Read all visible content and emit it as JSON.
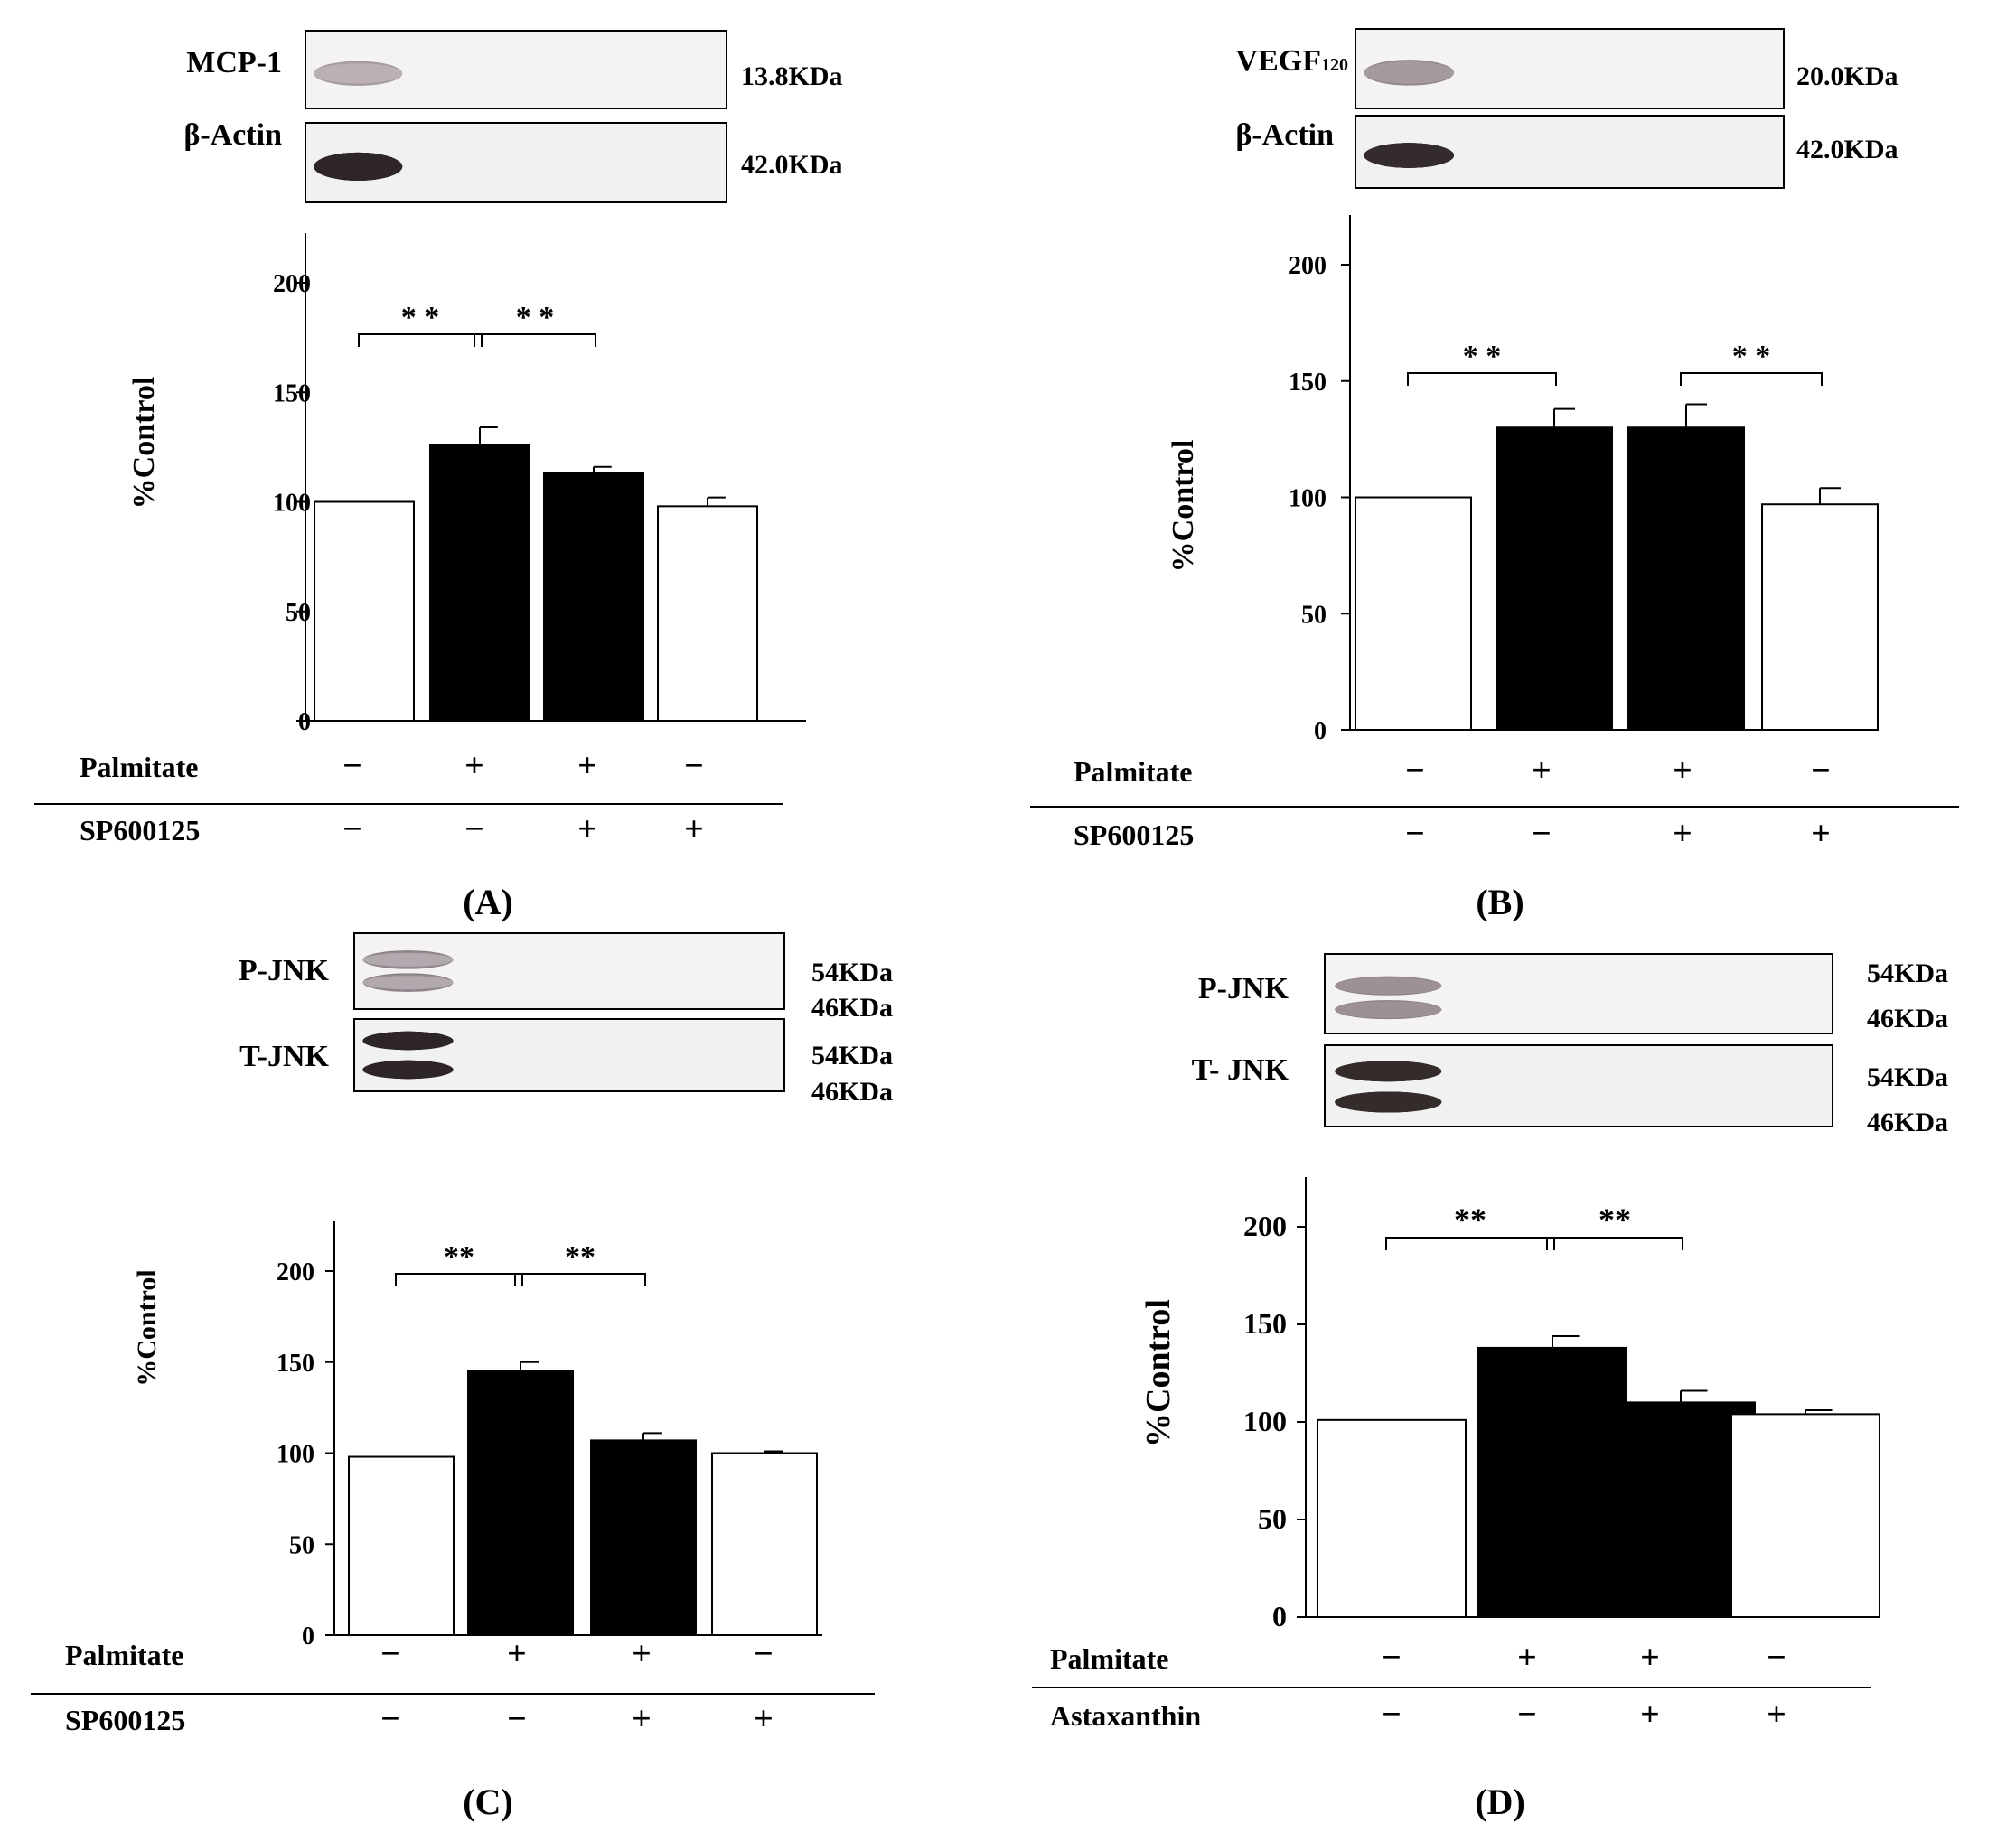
{
  "panels": [
    {
      "label": "(A)",
      "blots": [
        {
          "name": "MCP-1",
          "sub": "",
          "sizes": [
            "13.8KDa"
          ],
          "bands": [
            [
              0.45,
              0.7,
              0.45,
              0.28
            ]
          ],
          "dark": false
        },
        {
          "name": "β-Actin",
          "sub": "",
          "sizes": [
            "42.0KDa"
          ],
          "bands": [
            [
              0.95,
              0.95,
              0.95,
              0.95
            ]
          ],
          "dark": true
        }
      ],
      "conditions": [
        {
          "name": "Palmitate",
          "signs": [
            "−",
            "+",
            "+",
            "−"
          ]
        },
        {
          "name": "SP600125",
          "signs": [
            "−",
            "−",
            "+",
            "+"
          ]
        }
      ],
      "significance": [
        {
          "from": 0,
          "to": 1,
          "text": "* *"
        },
        {
          "from": 1,
          "to": 2,
          "text": "* *"
        }
      ]
    },
    {
      "label": "(B)",
      "blots": [
        {
          "name": "VEGF",
          "sub": "120",
          "sizes": [
            "20.0KDa"
          ],
          "bands": [
            [
              0.55,
              0.75,
              0.7,
              0.45
            ]
          ],
          "dark": false
        },
        {
          "name": "β-Actin",
          "sub": "",
          "sizes": [
            "42.0KDa"
          ],
          "bands": [
            [
              0.9,
              0.9,
              0.9,
              0.9
            ]
          ],
          "dark": true
        }
      ],
      "conditions": [
        {
          "name": "Palmitate",
          "signs": [
            "−",
            "+",
            "+",
            "−"
          ]
        },
        {
          "name": "SP600125",
          "signs": [
            "−",
            "−",
            "+",
            "+"
          ]
        }
      ],
      "significance": [
        {
          "from": 0,
          "to": 1,
          "text": "* *"
        },
        {
          "from": 2,
          "to": 3,
          "text": "* *"
        }
      ]
    },
    {
      "label": "(C)",
      "blots": [
        {
          "name": "P-JNK",
          "sub": "",
          "sizes": [
            "54KDa",
            "46KDa"
          ],
          "bands": [
            [
              0.55,
              0.85,
              0.6,
              0.2
            ]
          ],
          "dark": false
        },
        {
          "name": "T-JNK",
          "sub": "",
          "sizes": [
            "54KDa",
            "46KDa"
          ],
          "bands": [
            [
              0.95,
              0.95,
              0.95,
              0.95
            ]
          ],
          "dark": true
        }
      ],
      "conditions": [
        {
          "name": "Palmitate",
          "signs": [
            "−",
            "+",
            "+",
            "−"
          ]
        },
        {
          "name": "SP600125",
          "signs": [
            "−",
            "−",
            "+",
            "+"
          ]
        }
      ],
      "significance": [
        {
          "from": 0,
          "to": 1,
          "text": "**"
        },
        {
          "from": 1,
          "to": 2,
          "text": "**"
        }
      ]
    },
    {
      "label": "(D)",
      "blots": [
        {
          "name": "P-JNK",
          "sub": "",
          "sizes": [
            "54KDa",
            "46KDa"
          ],
          "bands": [
            [
              0.45,
              0.8,
              0.75,
              0.55
            ]
          ],
          "dark": false
        },
        {
          "name": "T- JNK",
          "sub": "",
          "sizes": [
            "54KDa",
            "46KDa"
          ],
          "bands": [
            [
              0.95,
              0.95,
              0.95,
              0.9
            ]
          ],
          "dark": true
        }
      ],
      "conditions": [
        {
          "name": "Palmitate",
          "signs": [
            "−",
            "+",
            "+",
            "−"
          ]
        },
        {
          "name": "Astaxanthin",
          "signs": [
            "−",
            "−",
            "+",
            "+"
          ]
        }
      ],
      "significance": [
        {
          "from": 0,
          "to": 1,
          "text": "**"
        },
        {
          "from": 1,
          "to": 2,
          "text": "**"
        }
      ]
    }
  ],
  "chart_data": [
    {
      "type": "bar",
      "ylabel": "%Control",
      "ylim": [
        0,
        200
      ],
      "yticks": [
        0,
        50,
        100,
        150,
        200
      ],
      "values": [
        100,
        126,
        113,
        98
      ],
      "errors": [
        0,
        8,
        3,
        4
      ],
      "bar_colors": [
        "#ffffff",
        "#000000",
        "#000000",
        "#ffffff"
      ]
    },
    {
      "type": "bar",
      "ylabel": "%Control",
      "ylim": [
        0,
        200
      ],
      "yticks": [
        0,
        50,
        100,
        150,
        200
      ],
      "values": [
        100,
        130,
        130,
        97
      ],
      "errors": [
        0,
        8,
        10,
        7
      ],
      "bar_colors": [
        "#ffffff",
        "#000000",
        "#000000",
        "#ffffff"
      ]
    },
    {
      "type": "bar",
      "ylabel": "%Control",
      "ylim": [
        0,
        200
      ],
      "yticks": [
        0,
        50,
        100,
        150,
        200
      ],
      "values": [
        98,
        145,
        107,
        100
      ],
      "errors": [
        0,
        5,
        4,
        1
      ],
      "bar_colors": [
        "#ffffff",
        "#000000",
        "#000000",
        "#ffffff"
      ]
    },
    {
      "type": "bar",
      "ylabel": "%Control",
      "ylim": [
        0,
        200
      ],
      "yticks": [
        0,
        50,
        100,
        150,
        200
      ],
      "values": [
        101,
        138,
        110,
        104
      ],
      "errors": [
        0,
        6,
        6,
        2
      ],
      "bar_colors": [
        "#ffffff",
        "#000000",
        "#000000",
        "#ffffff"
      ]
    }
  ]
}
